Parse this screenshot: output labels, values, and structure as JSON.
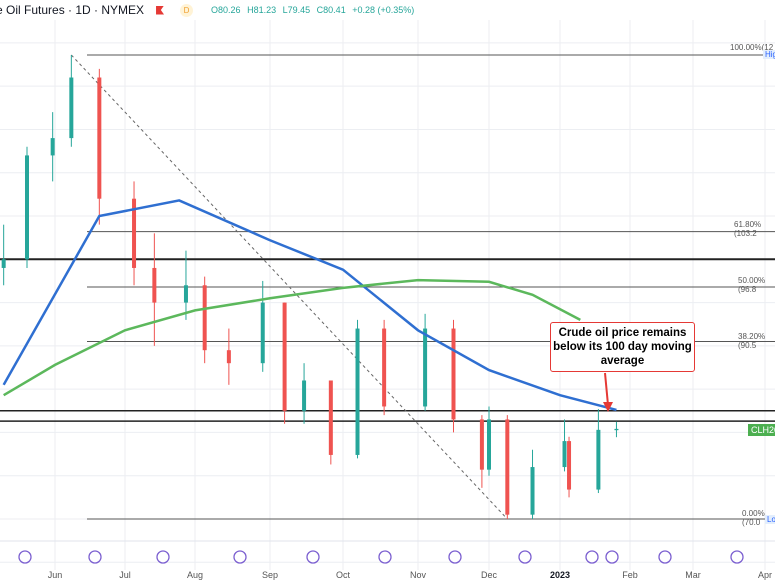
{
  "header": {
    "title": "e Oil Futures · 1D · NYMEX",
    "interval_badge": "D",
    "open": "O80.26",
    "high": "H81.23",
    "low": "L79.45",
    "close": "C80.41",
    "change": "+0.28 (+0.35%)"
  },
  "callout": {
    "text": "Crude oil price remains below its 100 day moving average"
  },
  "price_tag": {
    "label": "CLH202",
    "color": "#4caf50"
  },
  "fib_labels": {
    "f100": "100.00%(12",
    "f618": "61.80%(103.2",
    "f50": "50.00%(96.8",
    "f382": "38.20%(90.5",
    "f0": "0.00%(70.0"
  },
  "hi_lo": {
    "high": "Hig",
    "low": "Lo"
  },
  "chart_data": {
    "type": "candlestick",
    "title": "",
    "x_ticks": [
      {
        "label": "Jun",
        "date": "2022-06-01"
      },
      {
        "label": "Jul",
        "date": "2022-07-01"
      },
      {
        "label": "Aug",
        "date": "2022-08-01"
      },
      {
        "label": "Sep",
        "date": "2022-09-01"
      },
      {
        "label": "Oct",
        "date": "2022-10-01"
      },
      {
        "label": "Nov",
        "date": "2022-11-01"
      },
      {
        "label": "Dec",
        "date": "2022-12-01"
      },
      {
        "label": "2023",
        "date": "2023-01-01"
      },
      {
        "label": "Feb",
        "date": "2023-02-01"
      },
      {
        "label": "Mar",
        "date": "2023-03-01"
      },
      {
        "label": "Apr",
        "date": "2023-04-01"
      }
    ],
    "ylim": [
      63,
      130
    ],
    "candles": [
      {
        "date": "2022-05-10",
        "o": 99,
        "h": 104,
        "l": 97,
        "c": 100
      },
      {
        "date": "2022-05-20",
        "o": 100,
        "h": 113,
        "l": 99,
        "c": 112
      },
      {
        "date": "2022-05-31",
        "o": 112,
        "h": 117,
        "l": 109,
        "c": 114
      },
      {
        "date": "2022-06-08",
        "o": 114,
        "h": 123.6,
        "l": 113,
        "c": 121
      },
      {
        "date": "2022-06-20",
        "o": 121,
        "h": 122,
        "l": 104,
        "c": 107
      },
      {
        "date": "2022-07-05",
        "o": 107,
        "h": 109,
        "l": 97,
        "c": 99
      },
      {
        "date": "2022-07-14",
        "o": 99,
        "h": 103,
        "l": 90,
        "c": 95
      },
      {
        "date": "2022-07-28",
        "o": 95,
        "h": 101,
        "l": 93,
        "c": 97
      },
      {
        "date": "2022-08-05",
        "o": 97,
        "h": 98,
        "l": 88,
        "c": 89.5
      },
      {
        "date": "2022-08-15",
        "o": 89.5,
        "h": 92,
        "l": 85.5,
        "c": 88
      },
      {
        "date": "2022-08-29",
        "o": 88,
        "h": 97.5,
        "l": 87,
        "c": 95
      },
      {
        "date": "2022-09-07",
        "o": 95,
        "h": 95,
        "l": 81,
        "c": 82.5
      },
      {
        "date": "2022-09-15",
        "o": 82.5,
        "h": 88,
        "l": 81,
        "c": 86
      },
      {
        "date": "2022-09-26",
        "o": 86,
        "h": 86,
        "l": 76.3,
        "c": 77.4
      },
      {
        "date": "2022-10-07",
        "o": 77.4,
        "h": 93,
        "l": 77,
        "c": 92
      },
      {
        "date": "2022-10-18",
        "o": 92,
        "h": 93,
        "l": 82,
        "c": 83
      },
      {
        "date": "2022-11-04",
        "o": 83,
        "h": 93.7,
        "l": 82.5,
        "c": 92
      },
      {
        "date": "2022-11-16",
        "o": 92,
        "h": 93,
        "l": 80,
        "c": 81.5
      },
      {
        "date": "2022-11-28",
        "o": 81.5,
        "h": 82,
        "l": 73.6,
        "c": 75.7
      },
      {
        "date": "2022-12-01",
        "o": 75.7,
        "h": 83,
        "l": 75,
        "c": 81.5
      },
      {
        "date": "2022-12-09",
        "o": 81.5,
        "h": 82,
        "l": 70.0,
        "c": 70.5
      },
      {
        "date": "2022-12-20",
        "o": 70.5,
        "h": 78,
        "l": 70,
        "c": 76
      },
      {
        "date": "2023-01-03",
        "o": 76,
        "h": 81.5,
        "l": 75.5,
        "c": 79
      },
      {
        "date": "2023-01-05",
        "o": 79,
        "h": 79.5,
        "l": 72.5,
        "c": 73.4
      },
      {
        "date": "2023-01-18",
        "o": 73.4,
        "h": 82.7,
        "l": 73,
        "c": 80.3
      },
      {
        "date": "2023-01-26",
        "o": 80.26,
        "h": 81.23,
        "l": 79.45,
        "c": 80.41
      }
    ],
    "series": [
      {
        "name": "",
        "kind": "ma100",
        "color": "#2f6fd1",
        "points": [
          [
            "2022-05-10",
            85.5
          ],
          [
            "2022-06-20",
            105
          ],
          [
            "2022-07-25",
            106.8
          ],
          [
            "2022-09-01",
            102.2
          ],
          [
            "2022-10-01",
            98.8
          ],
          [
            "2022-11-01",
            91.8
          ],
          [
            "2022-12-01",
            87.2
          ],
          [
            "2023-01-01",
            84.3
          ],
          [
            "2023-01-26",
            82.6
          ]
        ]
      },
      {
        "name": "",
        "kind": "ma200",
        "color": "#5cb85c",
        "points": [
          [
            "2022-05-10",
            84.3
          ],
          [
            "2022-06-01",
            87.8
          ],
          [
            "2022-07-01",
            91.8
          ],
          [
            "2022-08-01",
            94.1
          ],
          [
            "2022-09-01",
            95.5
          ],
          [
            "2022-10-01",
            96.7
          ],
          [
            "2022-11-01",
            97.6
          ],
          [
            "2022-12-01",
            97.4
          ],
          [
            "2022-12-20",
            95.9
          ],
          [
            "2023-01-10",
            93.0
          ]
        ]
      }
    ],
    "horizontal_levels": [
      100.0,
      82.5,
      81.3
    ],
    "fib_levels": [
      {
        "pct": "100.00%",
        "price": 123.6
      },
      {
        "pct": "61.80%",
        "price": 103.2
      },
      {
        "pct": "50.00%",
        "price": 96.8
      },
      {
        "pct": "38.20%",
        "price": 90.5
      },
      {
        "pct": "0.00%",
        "price": 70.0
      }
    ],
    "trendline": [
      [
        "2022-06-08",
        123.6
      ],
      [
        "2022-12-09",
        70.0
      ]
    ],
    "last_price": 80.41,
    "up_color": "#26a69a",
    "down_color": "#ef5350",
    "grid": true
  }
}
